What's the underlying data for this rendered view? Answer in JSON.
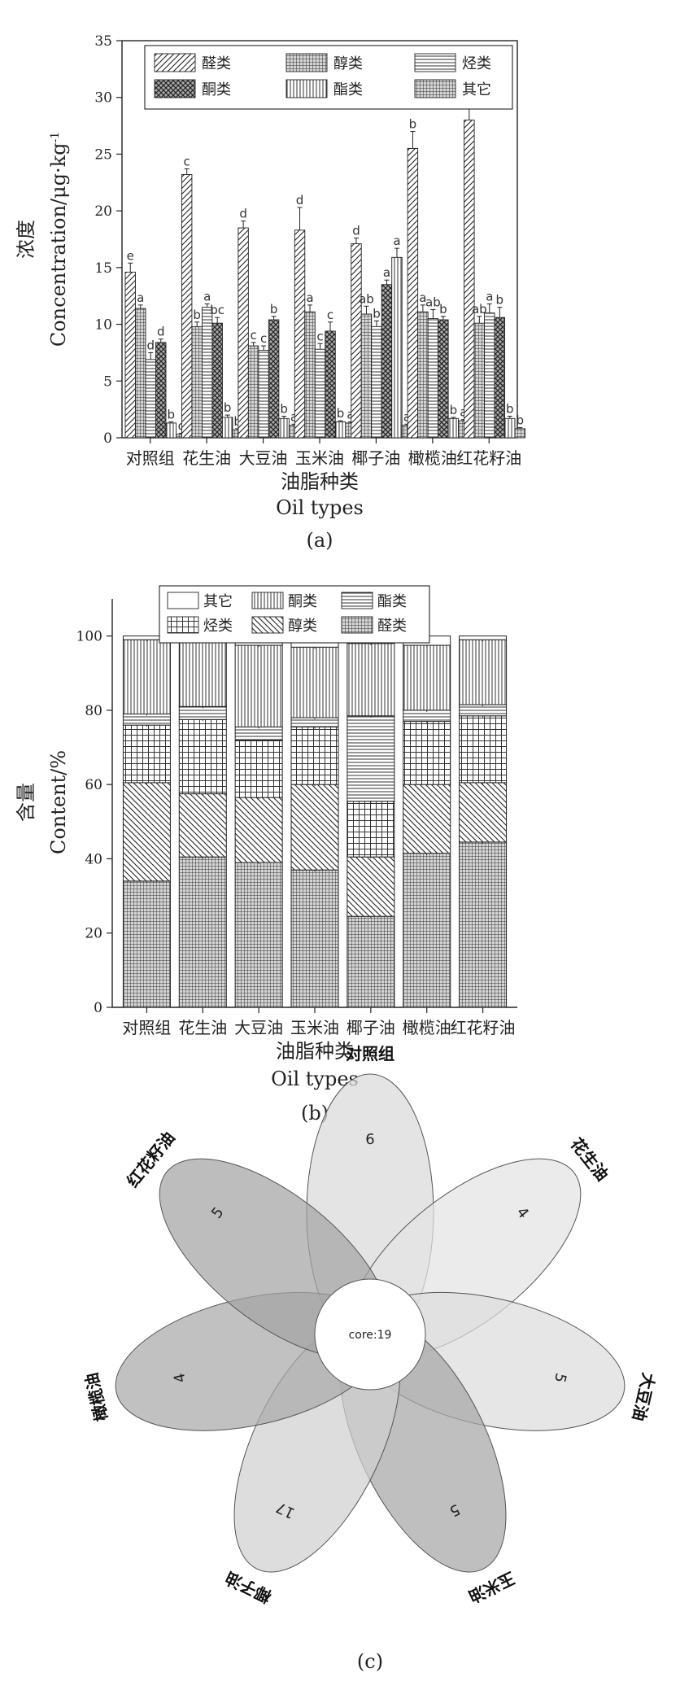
{
  "chart_data": [
    {
      "type": "bar",
      "panel": "(a)",
      "ylabel_cn": "浓度",
      "ylabel_en": "Concentration/μg·kg",
      "ylabel_sup": "-1",
      "xlabel_cn": "油脂种类",
      "xlabel_en": "Oil types",
      "ylim": [
        0,
        35
      ],
      "yticks": [
        0,
        5,
        10,
        15,
        20,
        25,
        30,
        35
      ],
      "categories": [
        "对照组",
        "花生油",
        "大豆油",
        "玉米油",
        "椰子油",
        "橄榄油",
        "红花籽油"
      ],
      "series": [
        {
          "name": "醛类",
          "values": [
            14.6,
            23.2,
            18.5,
            18.3,
            17.1,
            25.5,
            28.0
          ],
          "err": [
            0.8,
            0.5,
            0.6,
            2.0,
            0.5,
            1.5,
            1.8
          ],
          "sig": [
            "e",
            "c",
            "d",
            "d",
            "d",
            "b",
            "a"
          ]
        },
        {
          "name": "醇类",
          "values": [
            11.4,
            9.8,
            8.1,
            11.1,
            10.9,
            11.1,
            10.1
          ],
          "err": [
            0.3,
            0.4,
            0.3,
            0.6,
            0.7,
            0.6,
            0.6
          ],
          "sig": [
            "a",
            "b",
            "c",
            "a",
            "ab",
            "a",
            "ab"
          ]
        },
        {
          "name": "烃类",
          "values": [
            6.9,
            11.5,
            7.7,
            7.8,
            9.8,
            10.5,
            11.0
          ],
          "err": [
            0.6,
            0.3,
            0.4,
            0.5,
            0.5,
            0.8,
            0.8
          ],
          "sig": [
            "d",
            "a",
            "c",
            "c",
            "b",
            "ab",
            "a"
          ]
        },
        {
          "name": "酮类",
          "values": [
            8.4,
            10.1,
            10.4,
            9.4,
            13.5,
            10.4,
            10.6
          ],
          "err": [
            0.3,
            0.5,
            0.3,
            0.8,
            0.4,
            0.3,
            0.9
          ],
          "sig": [
            "d",
            "bc",
            "b",
            "c",
            "a",
            "b",
            "b"
          ]
        },
        {
          "name": "酯类",
          "values": [
            1.3,
            1.8,
            1.7,
            1.4,
            15.9,
            1.7,
            1.7
          ],
          "err": [
            0.1,
            0.2,
            0.2,
            0.1,
            0.8,
            0.1,
            0.2
          ],
          "sig": [
            "b",
            "b",
            "b",
            "b",
            "a",
            "b",
            "b"
          ]
        },
        {
          "name": "其它",
          "values": [
            0.3,
            0.7,
            1.1,
            1.3,
            1.1,
            1.5,
            0.8
          ],
          "err": [
            0.1,
            0.1,
            0.1,
            0.1,
            0.1,
            0.1,
            0.1
          ],
          "sig": [
            "c",
            "b",
            "a",
            "a",
            "a",
            "a",
            "b"
          ]
        }
      ]
    },
    {
      "type": "bar",
      "stacked": true,
      "panel": "(b)",
      "ylabel_cn": "含量",
      "ylabel_en": "Content/%",
      "xlabel_cn": "油脂种类",
      "xlabel_en": "Oil types",
      "ylim": [
        0,
        110
      ],
      "yticks": [
        0,
        20,
        40,
        60,
        80,
        100
      ],
      "categories": [
        "对照组",
        "花生油",
        "大豆油",
        "玉米油",
        "椰子油",
        "橄榄油",
        "红花籽油"
      ],
      "legend": [
        "其它",
        "酮类",
        "酯类",
        "烃类",
        "醇类",
        "醛类"
      ],
      "series": [
        {
          "name": "醛类",
          "values": [
            34.0,
            40.5,
            39.0,
            37.0,
            24.5,
            41.5,
            44.5
          ]
        },
        {
          "name": "醇类",
          "values": [
            26.5,
            17.0,
            17.5,
            23.0,
            16.0,
            18.5,
            16.0
          ]
        },
        {
          "name": "烃类",
          "values": [
            15.5,
            20.0,
            15.5,
            15.5,
            15.0,
            17.0,
            18.0
          ]
        },
        {
          "name": "酯类",
          "values": [
            3.0,
            3.5,
            3.5,
            2.5,
            23.0,
            3.0,
            3.0
          ]
        },
        {
          "name": "酮类",
          "values": [
            20.0,
            18.0,
            22.0,
            19.0,
            19.5,
            17.5,
            17.5
          ]
        },
        {
          "name": "其它",
          "values": [
            1.0,
            1.0,
            2.5,
            3.0,
            2.0,
            2.5,
            1.0
          ]
        }
      ]
    },
    {
      "type": "venn",
      "panel": "(c)",
      "core_label": "core:19",
      "petals": [
        {
          "name": "对照组",
          "value": 6
        },
        {
          "name": "花生油",
          "value": 4
        },
        {
          "name": "大豆油",
          "value": 5
        },
        {
          "name": "玉米油",
          "value": 5
        },
        {
          "name": "椰子油",
          "value": 17
        },
        {
          "name": "橄榄油",
          "value": 4
        },
        {
          "name": "红花籽油",
          "value": 5
        }
      ]
    }
  ]
}
